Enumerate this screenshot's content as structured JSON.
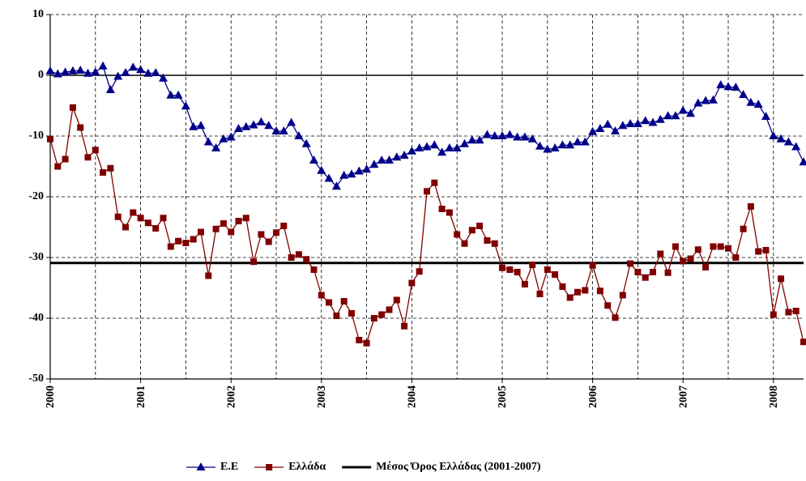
{
  "chart_data": {
    "type": "line",
    "categories": [
      "2000",
      null,
      null,
      null,
      null,
      null,
      null,
      null,
      null,
      null,
      null,
      null,
      "2001",
      null,
      null,
      null,
      null,
      null,
      null,
      null,
      null,
      null,
      null,
      null,
      "2002",
      null,
      null,
      null,
      null,
      null,
      null,
      null,
      null,
      null,
      null,
      null,
      "2003",
      null,
      null,
      null,
      null,
      null,
      null,
      null,
      null,
      null,
      null,
      null,
      "2004",
      null,
      null,
      null,
      null,
      null,
      null,
      null,
      null,
      null,
      null,
      null,
      "2005",
      null,
      null,
      null,
      null,
      null,
      null,
      null,
      null,
      null,
      null,
      null,
      "2006",
      null,
      null,
      null,
      null,
      null,
      null,
      null,
      null,
      null,
      null,
      null,
      "2007",
      null,
      null,
      null,
      null,
      null,
      null,
      null,
      null,
      null,
      null,
      null,
      "2008",
      null,
      null,
      null,
      null
    ],
    "series": [
      {
        "name": "Ε.Ε",
        "color": "#00008b",
        "marker": "triangle",
        "values": [
          0.7,
          0.2,
          0.5,
          0.7,
          0.8,
          0.3,
          0.5,
          1.5,
          -2.4,
          -0.2,
          0.4,
          1.3,
          0.9,
          0.3,
          0.4,
          -0.5,
          -3.3,
          -3.3,
          -5.1,
          -8.5,
          -8.3,
          -11,
          -12,
          -10.5,
          -10.2,
          -8.8,
          -8.5,
          -8.2,
          -7.7,
          -8.3,
          -9.2,
          -9.2,
          -7.8,
          -10,
          -11.3,
          -14,
          -15.7,
          -17,
          -18.3,
          -16.5,
          -16.3,
          -15.8,
          -15.5,
          -14.7,
          -14,
          -14,
          -13.5,
          -13.2,
          -12.5,
          -12,
          -11.8,
          -11.5,
          -12.7,
          -12,
          -12,
          -11.3,
          -10.7,
          -10.7,
          -9.8,
          -10,
          -10,
          -9.8,
          -10.2,
          -10.2,
          -10.5,
          -11.7,
          -12.2,
          -12,
          -11.5,
          -11.5,
          -11,
          -11,
          -9.3,
          -8.8,
          -8.1,
          -9.2,
          -8.3,
          -8,
          -8,
          -7.5,
          -7.8,
          -7.3,
          -6.7,
          -6.7,
          -5.8,
          -6.3,
          -4.6,
          -4.2,
          -4.1,
          -1.6,
          -1.9,
          -2,
          -3.2,
          -4.5,
          -4.8,
          -6.8,
          -10,
          -10.5,
          -11,
          -11.8,
          -14.3
        ]
      },
      {
        "name": "Ελλάδα",
        "color": "#800000",
        "marker": "square",
        "values": [
          -10.5,
          -15,
          -13.8,
          -5.3,
          -8.6,
          -13.5,
          -12.3,
          -16,
          -15.3,
          -23.3,
          -25,
          -22.6,
          -23.5,
          -24.3,
          -25.2,
          -23.5,
          -28.2,
          -27.3,
          -27.6,
          -27,
          -25.8,
          -33,
          -25.3,
          -24.4,
          -25.8,
          -24,
          -23.5,
          -30.7,
          -26.2,
          -27.4,
          -25.9,
          -24.8,
          -30,
          -29.5,
          -30.3,
          -32,
          -36.2,
          -37.4,
          -39.6,
          -37.2,
          -39.2,
          -43.6,
          -44.1,
          -40,
          -39.4,
          -38.6,
          -37,
          -41.3,
          -34.2,
          -32.3,
          -19.1,
          -17.7,
          -22,
          -22.6,
          -26.2,
          -27.7,
          -25.5,
          -24.8,
          -27.2,
          -27.7,
          -31.7,
          -32,
          -32.4,
          -34.4,
          -31.2,
          -36,
          -32,
          -32.8,
          -34.8,
          -36.6,
          -35.7,
          -35.4,
          -31.3,
          -35.5,
          -37.9,
          -39.9,
          -36.2,
          -31,
          -32.4,
          -33.3,
          -32.4,
          -29.4,
          -32.5,
          -28.2,
          -30.6,
          -30.2,
          -28.7,
          -31.6,
          -28.2,
          -28.2,
          -28.5,
          -30,
          -25.3,
          -21.6,
          -29,
          -28.8,
          -39.4,
          -33.5,
          -39,
          -38.8,
          -43.9
        ]
      }
    ],
    "reference_line": {
      "name": "Μέσος Όρος Ελλάδας (2001-2007)",
      "color": "#000000",
      "value": -30.9
    },
    "ylim": [
      -50,
      10
    ],
    "yticks": [
      -50,
      -40,
      -30,
      -20,
      -10,
      0,
      10
    ],
    "grid": true
  }
}
